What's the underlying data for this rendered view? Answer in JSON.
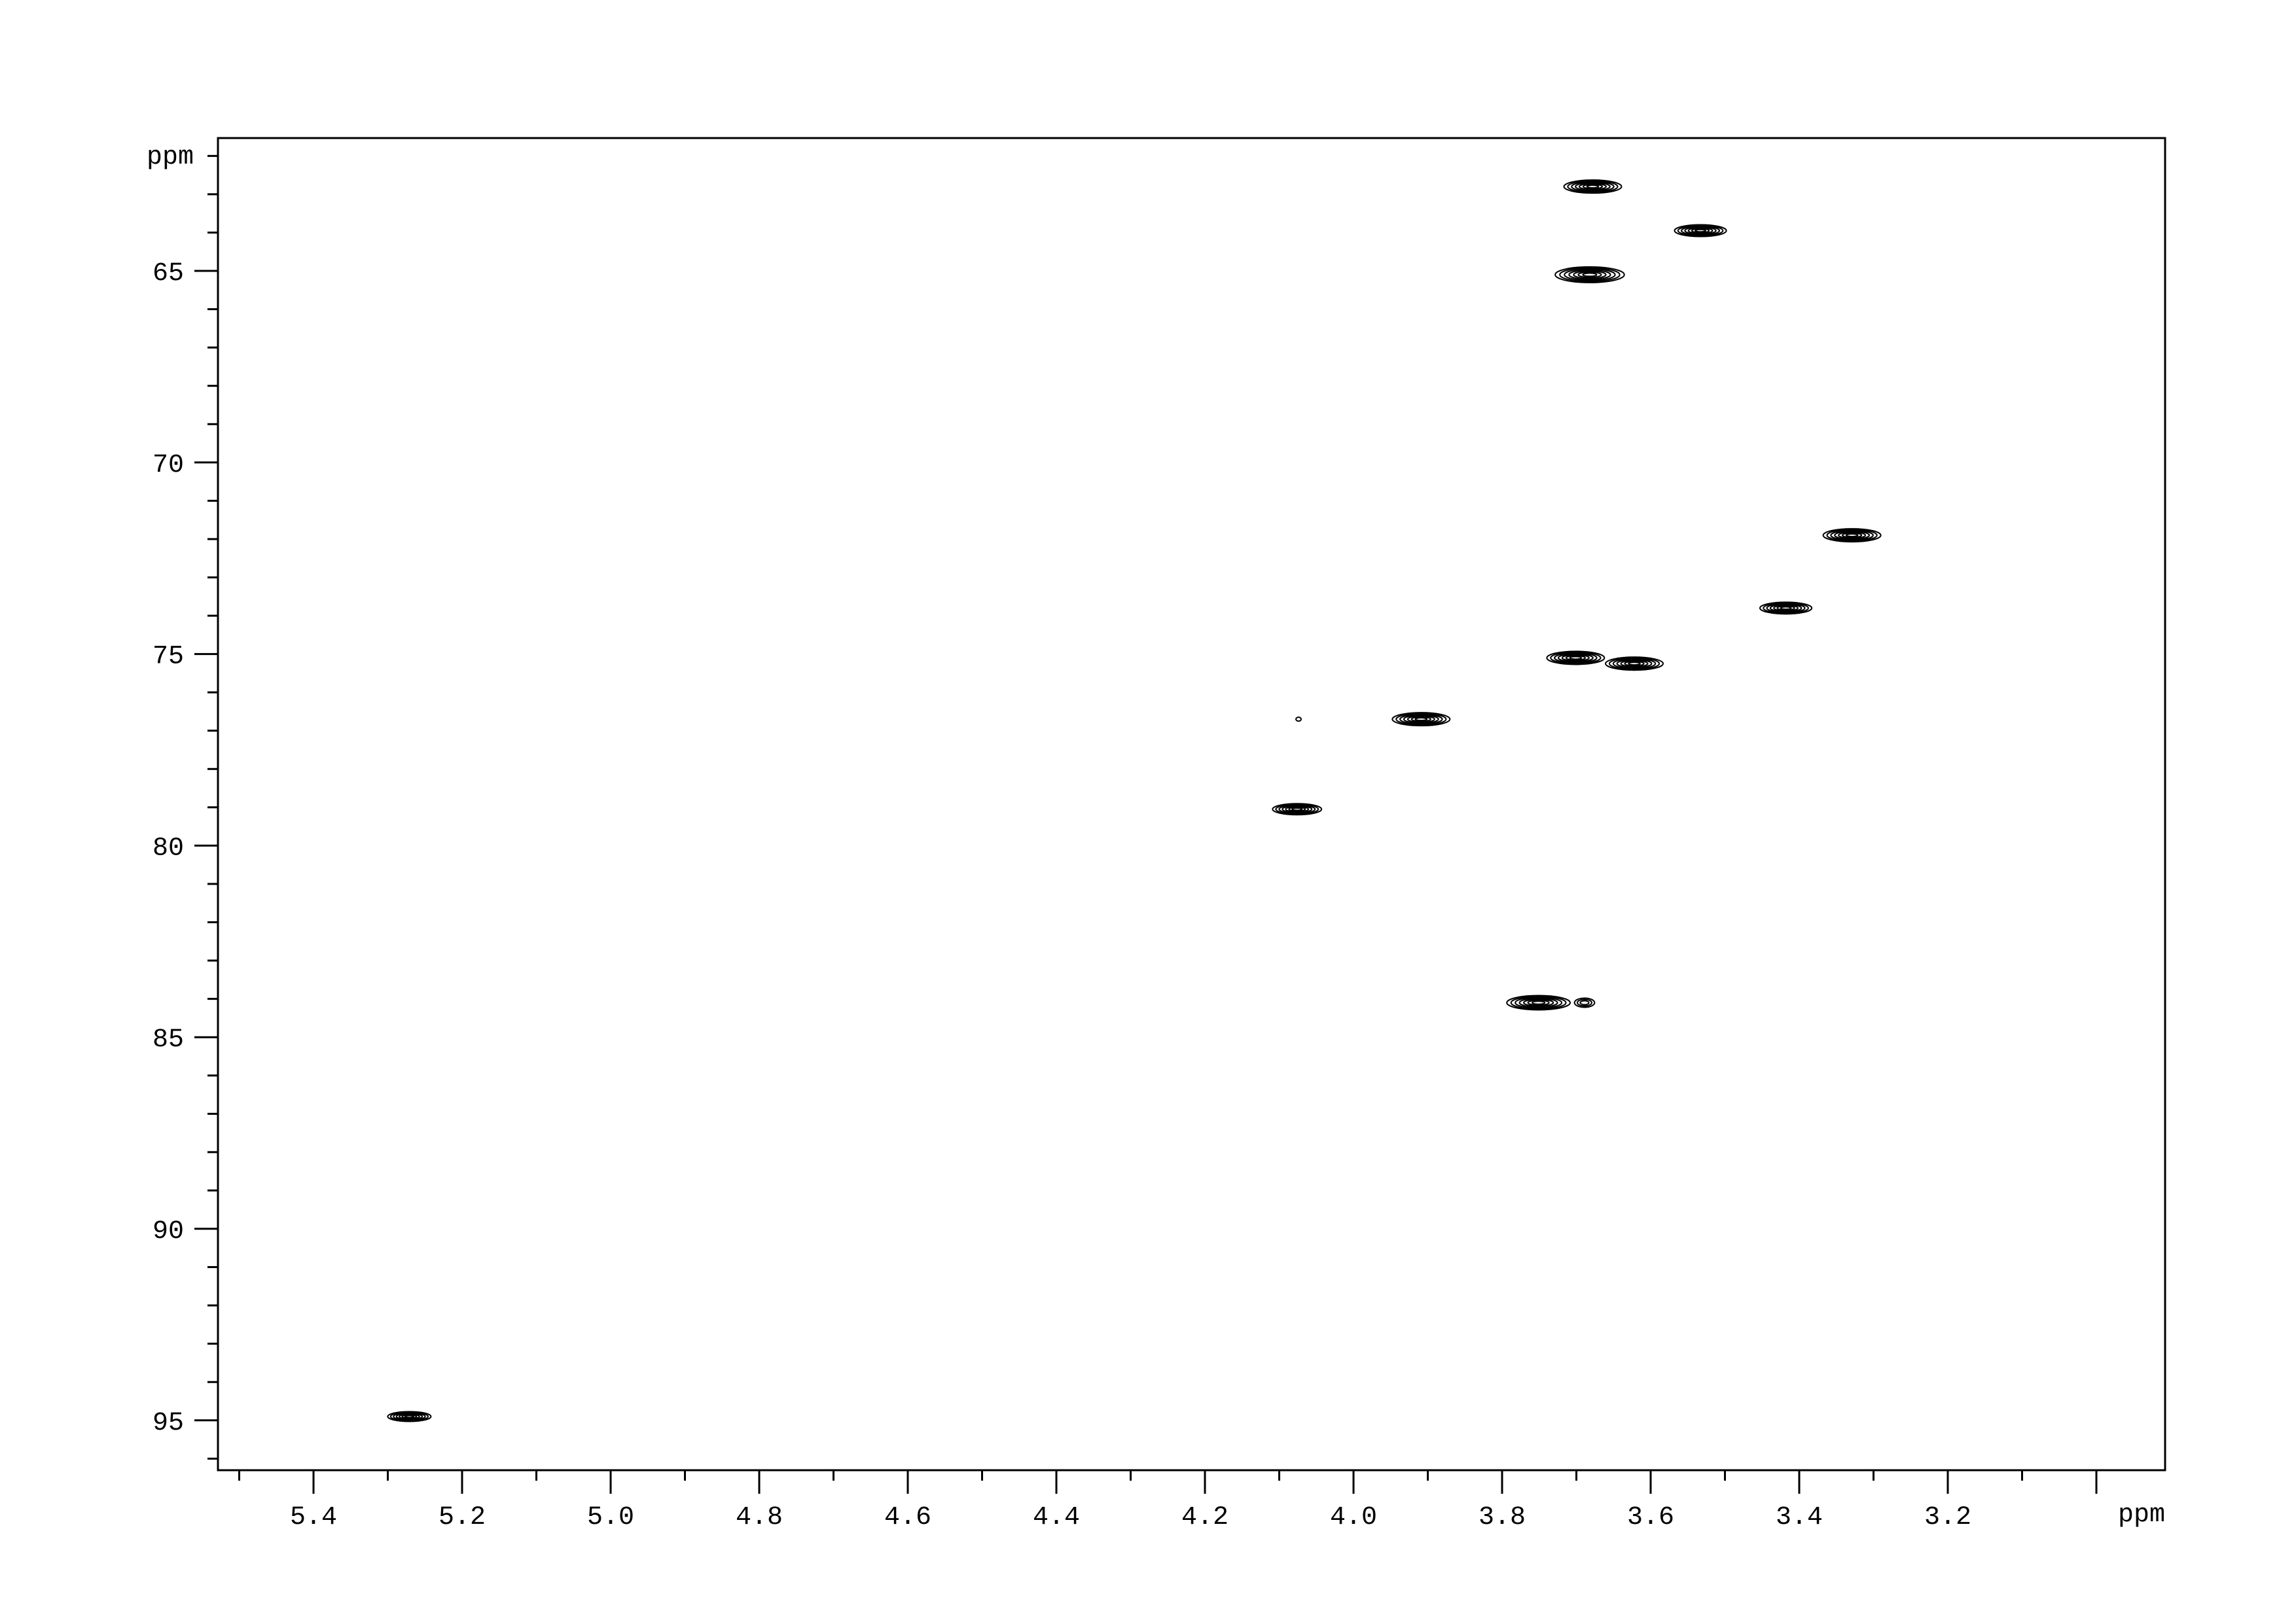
{
  "chart_data": {
    "type": "contour",
    "title": "",
    "xlabel": "ppm",
    "ylabel": "ppm",
    "xlim": [
      5.53,
      2.91
    ],
    "ylim": [
      61.5,
      96.3
    ],
    "x_reversed": true,
    "y_reversed": true,
    "x_ticks": [
      "5.4",
      "5.2",
      "5.0",
      "4.8",
      "4.6",
      "4.4",
      "4.2",
      "4.0",
      "3.8",
      "3.6",
      "3.4",
      "3.2"
    ],
    "y_ticks": [
      "65",
      "70",
      "75",
      "80",
      "85",
      "90",
      "95"
    ],
    "grid": false,
    "line_color": "#000000",
    "peaks": [
      {
        "x": 3.678,
        "y": 62.8,
        "size": 1.0
      },
      {
        "x": 3.533,
        "y": 63.95,
        "size": 0.9
      },
      {
        "x": 3.682,
        "y": 65.1,
        "size": 1.2
      },
      {
        "x": 3.329,
        "y": 71.9,
        "size": 1.0
      },
      {
        "x": 3.418,
        "y": 73.8,
        "size": 0.9
      },
      {
        "x": 3.701,
        "y": 75.1,
        "size": 1.0
      },
      {
        "x": 3.622,
        "y": 75.25,
        "size": 1.0
      },
      {
        "x": 3.909,
        "y": 76.7,
        "size": 1.0
      },
      {
        "x": 4.074,
        "y": 76.7,
        "size": 0.1
      },
      {
        "x": 4.076,
        "y": 79.05,
        "size": 0.85
      },
      {
        "x": 3.751,
        "y": 84.1,
        "size": 1.1
      },
      {
        "x": 3.689,
        "y": 84.1,
        "size": 0.35
      },
      {
        "x": 5.271,
        "y": 94.9,
        "size": 0.75
      }
    ]
  }
}
